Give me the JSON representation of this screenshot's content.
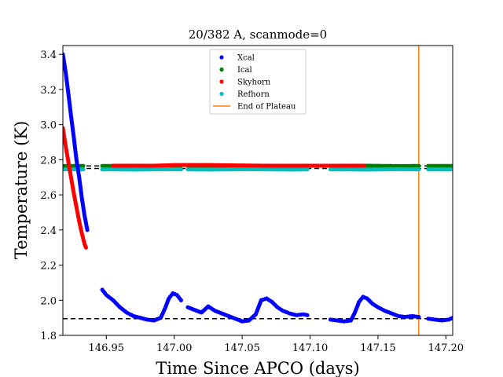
{
  "chart_data": {
    "type": "scatter",
    "title": "20/382 A, scanmode=0",
    "xlabel": "Time Since APCO (days)",
    "ylabel": "Temperature (K)",
    "xlim": [
      146.918,
      147.205
    ],
    "ylim": [
      1.8,
      3.45
    ],
    "xticks": [
      146.95,
      147.0,
      147.05,
      147.1,
      147.15,
      147.2
    ],
    "xtick_labels": [
      "146.95",
      "147.00",
      "147.05",
      "147.10",
      "147.15",
      "147.20"
    ],
    "yticks": [
      1.8,
      2.0,
      2.2,
      2.4,
      2.6,
      2.8,
      3.0,
      3.2,
      3.4
    ],
    "ytick_labels": [
      "1.8",
      "2.0",
      "2.2",
      "2.4",
      "2.6",
      "2.8",
      "3.0",
      "3.2",
      "3.4"
    ],
    "grid": false,
    "legend": {
      "placement": "upper-center",
      "entries": [
        {
          "name": "Xcal",
          "marker": "dot",
          "color": "#0000ff"
        },
        {
          "name": "Ical",
          "marker": "dot",
          "color": "#008000"
        },
        {
          "name": "Skyhorn",
          "marker": "dot",
          "color": "#ff0000"
        },
        {
          "name": "Refhorn",
          "marker": "dot",
          "color": "#00bfbf"
        },
        {
          "name": "End of Plateau",
          "marker": "line",
          "color": "#ff7f0e"
        }
      ]
    },
    "reference_lines": {
      "horizontal_dashed": [
        2.765,
        2.75,
        1.895
      ],
      "vertical": {
        "name": "End of Plateau",
        "x": 147.18,
        "color": "#ff7f0e"
      }
    },
    "series": [
      {
        "name": "Xcal",
        "color": "#0000ff",
        "segments": [
          {
            "x": [
              146.918,
              146.92,
              146.922,
              146.924,
              146.926,
              146.928,
              146.93,
              146.932,
              146.934,
              146.936
            ],
            "y": [
              3.4,
              3.3,
              3.18,
              3.05,
              2.93,
              2.8,
              2.7,
              2.58,
              2.48,
              2.4
            ]
          },
          {
            "x": [
              146.947,
              146.95,
              146.955,
              146.96,
              146.965,
              146.97,
              146.975,
              146.98,
              146.985,
              146.99,
              146.993,
              146.996,
              146.999,
              147.002,
              147.005
            ],
            "y": [
              2.06,
              2.03,
              2.0,
              1.96,
              1.93,
              1.91,
              1.9,
              1.89,
              1.885,
              1.9,
              1.95,
              2.01,
              2.04,
              2.03,
              2.0
            ]
          },
          {
            "x": [
              147.01,
              147.015,
              147.02,
              147.025,
              147.03,
              147.035,
              147.04,
              147.045,
              147.05,
              147.055,
              147.06,
              147.064,
              147.068,
              147.072,
              147.076,
              147.08,
              147.085,
              147.09,
              147.095,
              147.098
            ],
            "y": [
              1.96,
              1.945,
              1.93,
              1.965,
              1.94,
              1.925,
              1.91,
              1.895,
              1.88,
              1.885,
              1.92,
              2.0,
              2.01,
              1.99,
              1.96,
              1.94,
              1.925,
              1.915,
              1.92,
              1.915
            ]
          },
          {
            "x": [
              147.115,
              147.12,
              147.125,
              147.13,
              147.133,
              147.136,
              147.139,
              147.142,
              147.146,
              147.15,
              147.155,
              147.16,
              147.165,
              147.17,
              147.175,
              147.18
            ],
            "y": [
              1.89,
              1.885,
              1.88,
              1.885,
              1.93,
              1.99,
              2.02,
              2.01,
              1.98,
              1.96,
              1.94,
              1.925,
              1.91,
              1.905,
              1.91,
              1.905
            ]
          },
          {
            "x": [
              147.187,
              147.192,
              147.197,
              147.202,
              147.205
            ],
            "y": [
              1.895,
              1.89,
              1.885,
              1.89,
              1.9
            ]
          }
        ]
      },
      {
        "name": "Ical",
        "color": "#008000",
        "segments": [
          {
            "x": [
              146.918,
              146.923,
              146.928,
              146.933
            ],
            "y": [
              2.765,
              2.765,
              2.765,
              2.765
            ]
          },
          {
            "x": [
              146.947,
              146.958,
              146.97,
              146.982,
              146.994,
              147.005
            ],
            "y": [
              2.765,
              2.765,
              2.766,
              2.765,
              2.764,
              2.765
            ]
          },
          {
            "x": [
              147.01,
              147.025,
              147.04,
              147.055,
              147.07,
              147.085,
              147.098
            ],
            "y": [
              2.765,
              2.764,
              2.765,
              2.766,
              2.765,
              2.764,
              2.765
            ]
          },
          {
            "x": [
              147.115,
              147.128,
              147.141,
              147.154,
              147.167,
              147.18
            ],
            "y": [
              2.765,
              2.765,
              2.766,
              2.765,
              2.764,
              2.765
            ]
          },
          {
            "x": [
              147.187,
              147.196,
              147.205
            ],
            "y": [
              2.765,
              2.765,
              2.765
            ]
          }
        ]
      },
      {
        "name": "Skyhorn",
        "color": "#ff0000",
        "segments": [
          {
            "x": [
              146.918,
              146.92,
              146.922,
              146.924,
              146.926,
              146.928,
              146.93,
              146.932,
              146.934,
              146.935
            ],
            "y": [
              2.98,
              2.88,
              2.79,
              2.7,
              2.61,
              2.53,
              2.45,
              2.38,
              2.32,
              2.3
            ]
          },
          {
            "x": [
              146.955,
              146.985,
              147.002,
              147.024,
              147.065,
              147.14
            ],
            "y": [
              2.766,
              2.766,
              2.77,
              2.77,
              2.766,
              2.766
            ]
          }
        ]
      },
      {
        "name": "Refhorn",
        "color": "#00bfbf",
        "segments": [
          {
            "x": [
              146.918,
              146.923,
              146.928,
              146.933
            ],
            "y": [
              2.745,
              2.745,
              2.745,
              2.745
            ]
          },
          {
            "x": [
              146.947,
              146.958,
              146.97,
              146.982,
              146.994,
              147.005
            ],
            "y": [
              2.745,
              2.745,
              2.744,
              2.745,
              2.746,
              2.745
            ]
          },
          {
            "x": [
              147.01,
              147.025,
              147.04,
              147.055,
              147.07,
              147.085,
              147.098
            ],
            "y": [
              2.745,
              2.744,
              2.745,
              2.746,
              2.745,
              2.744,
              2.745
            ]
          },
          {
            "x": [
              147.115,
              147.128,
              147.141,
              147.154,
              147.167,
              147.18
            ],
            "y": [
              2.745,
              2.745,
              2.744,
              2.745,
              2.746,
              2.745
            ]
          },
          {
            "x": [
              147.187,
              147.196,
              147.205
            ],
            "y": [
              2.745,
              2.745,
              2.745
            ]
          }
        ]
      }
    ]
  }
}
